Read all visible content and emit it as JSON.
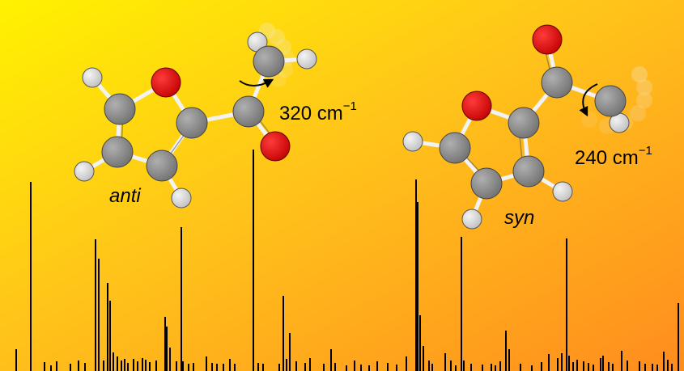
{
  "molecules": {
    "anti": {
      "label": "anti",
      "torsion_frequency": "320 cm",
      "torsion_unit_exponent": "−1"
    },
    "syn": {
      "label": "syn",
      "torsion_frequency": "240 cm",
      "torsion_unit_exponent": "−1"
    }
  },
  "colors": {
    "background_top_left": "#FFF200",
    "background_mid": "#FFC41A",
    "background_bottom_right": "#FF8C1E",
    "carbon": "#8A8A8A",
    "oxygen": "#E00000",
    "hydrogen": "#DADADA",
    "bond": "#F0F0F0",
    "spectrum_lines": "#000000"
  },
  "icons": {
    "rotation_arrow_anti": "curved-arrow-icon",
    "rotation_arrow_syn": "curved-arrow-icon"
  }
}
